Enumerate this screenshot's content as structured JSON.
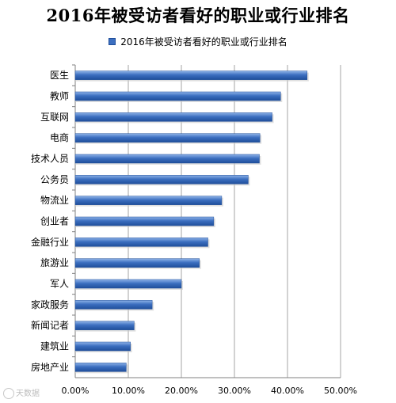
{
  "title": "2016年被受访者看好的职业或行业排名",
  "colors": {
    "bar": "#3c6fc0",
    "bar_dark": "#1f4e9a",
    "bar_light": "#8fb3e8",
    "grid": "#a6a6a6"
  },
  "watermark": "天数据",
  "chart_data": {
    "type": "bar",
    "orientation": "horizontal",
    "title": "2016年被受访者看好的职业或行业排名",
    "xlabel": "",
    "ylabel": "",
    "xlim": [
      0,
      0.5
    ],
    "grid": true,
    "legend_position": "top",
    "categories": [
      "医生",
      "教师",
      "互联网",
      "电商",
      "技术人员",
      "公务员",
      "物流业",
      "创业者",
      "金融行业",
      "旅游业",
      "军人",
      "家政服务",
      "新闻记者",
      "建筑业",
      "房地产业"
    ],
    "series": [
      {
        "name": "2016年被受访者看好的职业或行业排名",
        "values": [
          0.437,
          0.387,
          0.371,
          0.348,
          0.347,
          0.326,
          0.276,
          0.261,
          0.25,
          0.234,
          0.2,
          0.145,
          0.111,
          0.104,
          0.096
        ]
      }
    ],
    "tick_labels": [
      "0.00%",
      "10.00%",
      "20.00%",
      "30.00%",
      "40.00%",
      "50.00%"
    ]
  }
}
